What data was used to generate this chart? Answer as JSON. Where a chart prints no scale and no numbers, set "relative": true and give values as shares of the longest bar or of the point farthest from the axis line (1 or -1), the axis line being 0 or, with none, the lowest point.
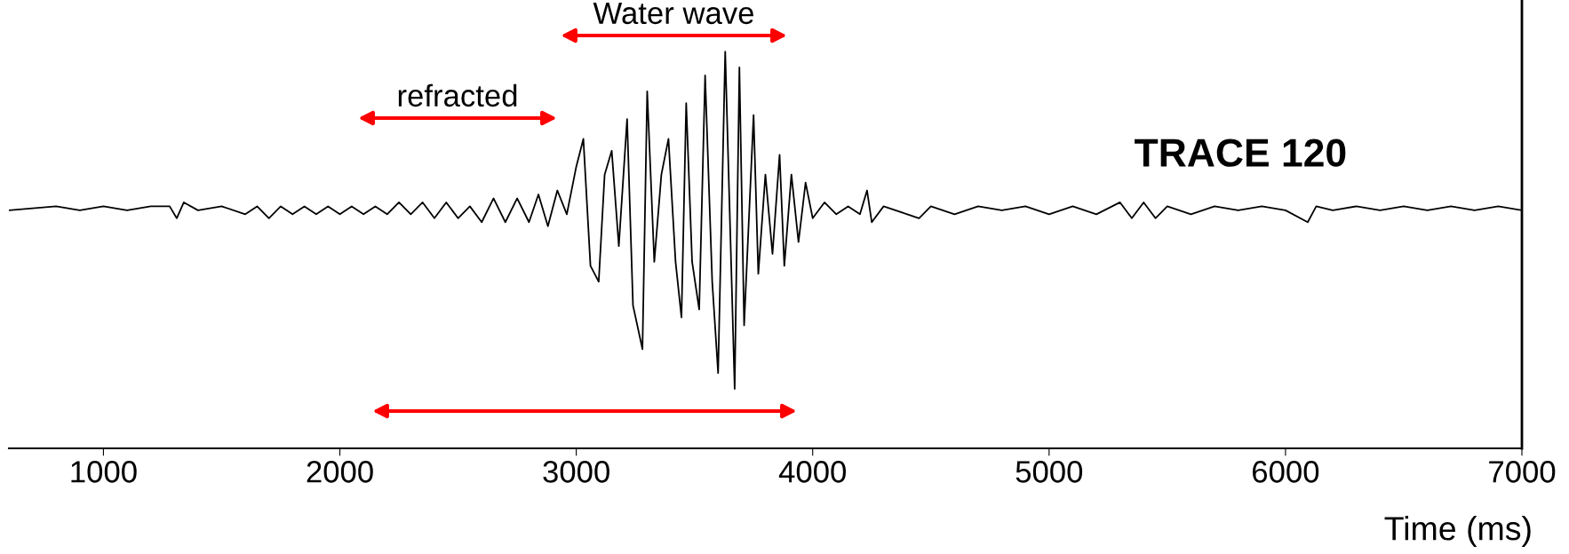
{
  "chart_data": {
    "type": "line",
    "title": "TRACE 120",
    "xlabel": "Time (ms)",
    "relative": true,
    "xlim": [
      600,
      7000
    ],
    "xticks": [
      1000,
      2000,
      3000,
      4000,
      5000,
      6000,
      7000
    ],
    "grid": false,
    "marker": "none",
    "line_style": "solid",
    "tick_labels": "x",
    "series": [
      {
        "color": "#000000",
        "x": [
          600,
          800,
          900,
          1000,
          1100,
          1200,
          1280,
          1310,
          1340,
          1400,
          1500,
          1600,
          1650,
          1700,
          1750,
          1800,
          1850,
          1900,
          1950,
          2000,
          2050,
          2100,
          2150,
          2200,
          2250,
          2300,
          2350,
          2400,
          2450,
          2500,
          2550,
          2600,
          2650,
          2700,
          2750,
          2800,
          2840,
          2880,
          2920,
          2960,
          3000,
          3030,
          3060,
          3095,
          3120,
          3150,
          3180,
          3215,
          3240,
          3280,
          3300,
          3330,
          3360,
          3390,
          3420,
          3445,
          3465,
          3490,
          3520,
          3545,
          3575,
          3600,
          3630,
          3670,
          3690,
          3710,
          3750,
          3770,
          3800,
          3830,
          3860,
          3880,
          3910,
          3940,
          3970,
          4000,
          4050,
          4100,
          4150,
          4200,
          4230,
          4250,
          4300,
          4400,
          4450,
          4500,
          4600,
          4700,
          4800,
          4900,
          5000,
          5100,
          5200,
          5300,
          5350,
          5400,
          5450,
          5500,
          5600,
          5700,
          5800,
          5900,
          6000,
          6094,
          6130,
          6200,
          6300,
          6400,
          6500,
          6600,
          6700,
          6800,
          6900,
          7000
        ],
        "values": [
          0.6,
          0.61,
          0.6,
          0.61,
          0.6,
          0.61,
          0.61,
          0.58,
          0.62,
          0.6,
          0.61,
          0.59,
          0.61,
          0.58,
          0.61,
          0.59,
          0.61,
          0.59,
          0.61,
          0.59,
          0.61,
          0.59,
          0.61,
          0.59,
          0.62,
          0.59,
          0.62,
          0.58,
          0.62,
          0.58,
          0.61,
          0.57,
          0.63,
          0.57,
          0.63,
          0.57,
          0.64,
          0.56,
          0.65,
          0.59,
          0.71,
          0.78,
          0.46,
          0.42,
          0.69,
          0.75,
          0.51,
          0.83,
          0.36,
          0.25,
          0.9,
          0.47,
          0.69,
          0.78,
          0.47,
          0.33,
          0.87,
          0.47,
          0.35,
          0.94,
          0.42,
          0.19,
          1.0,
          0.15,
          0.96,
          0.31,
          0.84,
          0.44,
          0.69,
          0.49,
          0.74,
          0.46,
          0.69,
          0.52,
          0.67,
          0.58,
          0.62,
          0.59,
          0.61,
          0.59,
          0.65,
          0.57,
          0.61,
          0.59,
          0.58,
          0.61,
          0.59,
          0.61,
          0.6,
          0.61,
          0.59,
          0.61,
          0.59,
          0.62,
          0.58,
          0.62,
          0.58,
          0.61,
          0.59,
          0.61,
          0.6,
          0.61,
          0.6,
          0.57,
          0.61,
          0.6,
          0.61,
          0.6,
          0.61,
          0.6,
          0.61,
          0.6,
          0.61,
          0.6
        ]
      }
    ],
    "annotations": [
      "refracted",
      "Water wave"
    ]
  }
}
